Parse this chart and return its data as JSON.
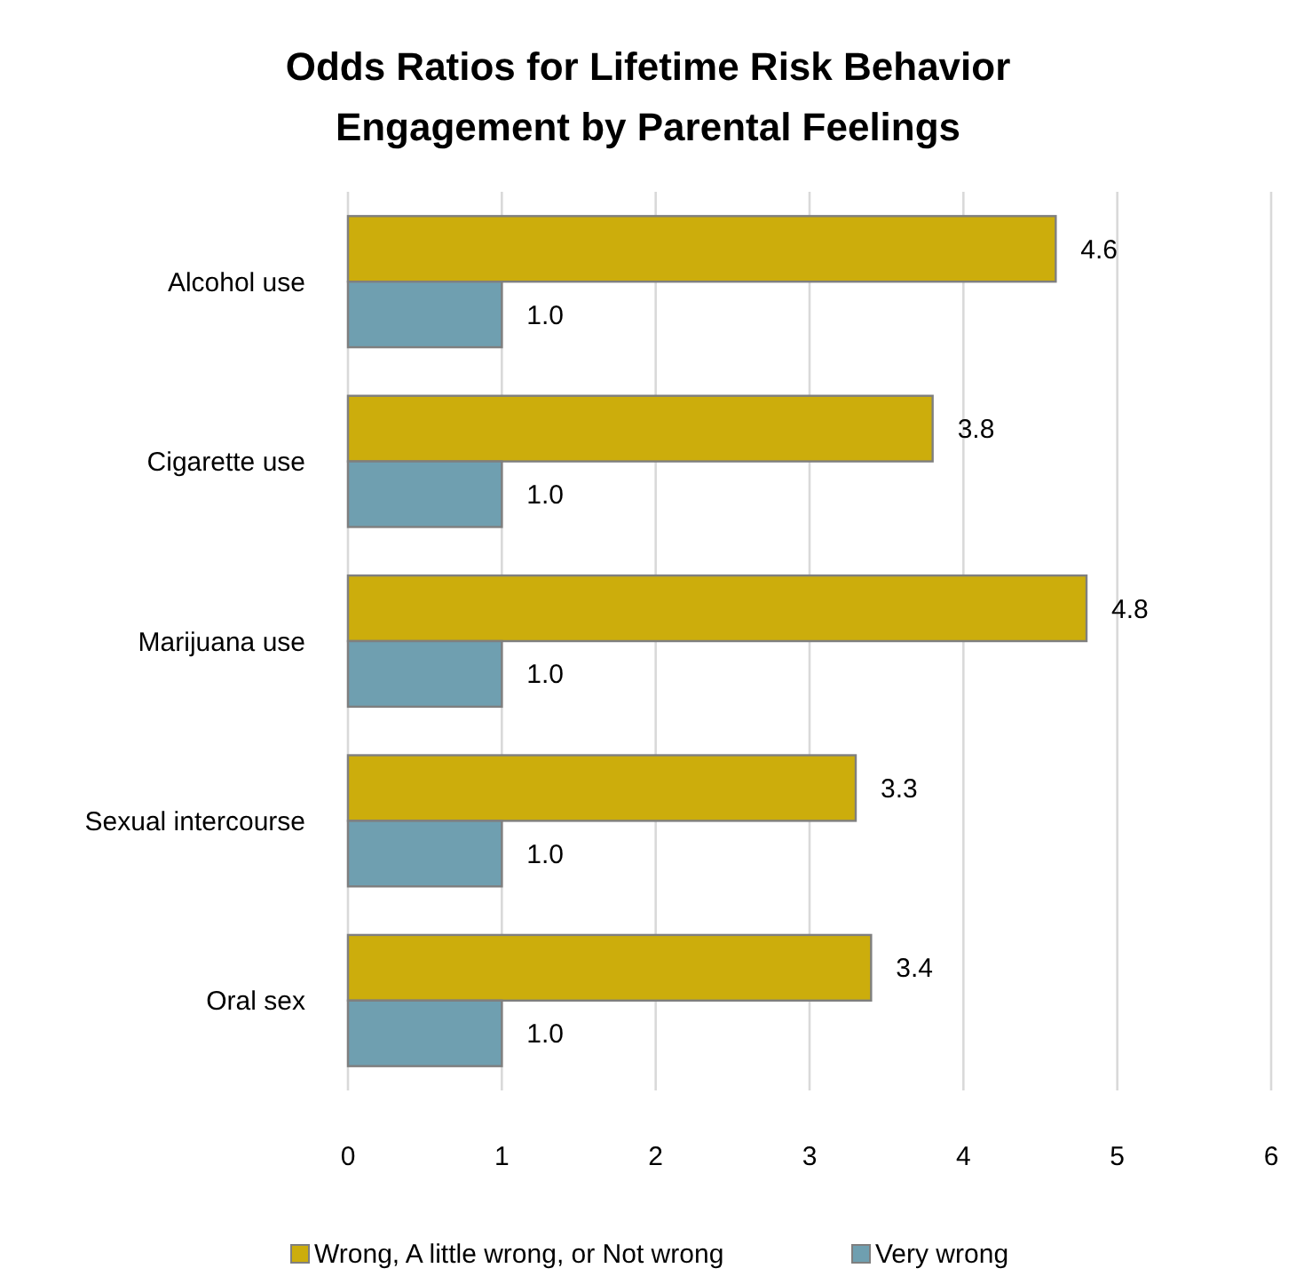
{
  "chart_data": {
    "type": "bar",
    "orientation": "horizontal",
    "title": "Odds Ratios for Lifetime Risk Behavior Engagement by Parental Feelings",
    "categories": [
      "Alcohol use",
      "Cigarette use",
      "Marijuana use",
      "Sexual intercourse",
      "Oral sex"
    ],
    "series": [
      {
        "name": "Wrong, A little wrong, or Not wrong",
        "color": "#ccad0c",
        "values": [
          4.6,
          3.8,
          4.8,
          3.3,
          3.4
        ],
        "value_labels": [
          "4.6",
          "3.8",
          "4.8",
          "3.3",
          "3.4"
        ]
      },
      {
        "name": "Very wrong",
        "color": "#6f9fb0",
        "values": [
          1.0,
          1.0,
          1.0,
          1.0,
          1.0
        ],
        "value_labels": [
          "1.0",
          "1.0",
          "1.0",
          "1.0",
          "1.0"
        ]
      }
    ],
    "xlim": [
      0,
      6
    ],
    "xticks": [
      0,
      1,
      2,
      3,
      4,
      5,
      6
    ],
    "grid": "x",
    "legend": "bottom"
  }
}
